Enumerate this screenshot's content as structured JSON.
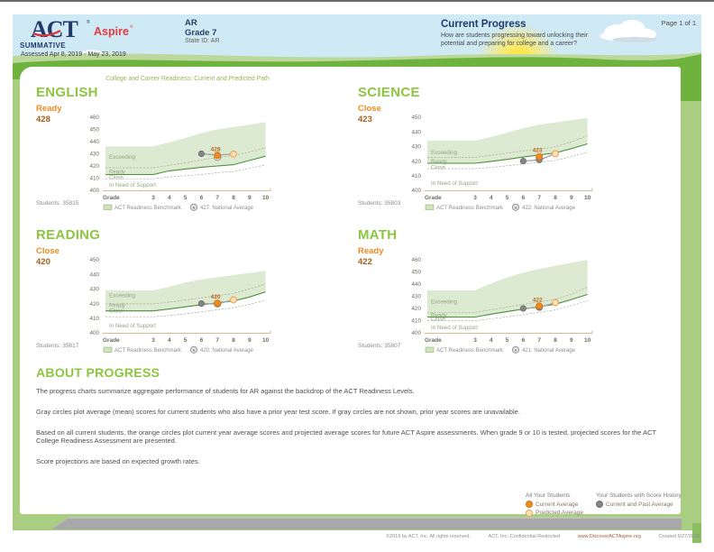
{
  "header": {
    "logo_act": "ACT",
    "logo_aspire": "Aspire",
    "logo_reg": "®",
    "program": "SUMMATIVE",
    "assessed": "Assessed Apr 8, 2019 - May 23, 2019",
    "org": "AR",
    "grade": "Grade 7",
    "state_id": "State ID: AR",
    "report_title": "Current Progress",
    "report_subtitle": "How are students progressing toward unlocking their potential and preparing for college and a career?",
    "page_number": "Page 1 of 1"
  },
  "section_title": "College and Career Readiness: Current and Predicted Path",
  "subjects": [
    {
      "name": "ENGLISH",
      "level": "Ready",
      "score": "428",
      "students": "Students: 35815"
    },
    {
      "name": "SCIENCE",
      "level": "Close",
      "score": "423",
      "students": "Students: 35803"
    },
    {
      "name": "READING",
      "level": "Close",
      "score": "420",
      "students": "Students: 35817"
    },
    {
      "name": "MATH",
      "level": "Ready",
      "score": "422",
      "students": "Students: 35807"
    }
  ],
  "chart_data": [
    {
      "type": "area",
      "subject": "English",
      "xlabel": "Grade",
      "x_grades": [
        3,
        4,
        5,
        6,
        7,
        8,
        9,
        10
      ],
      "ylim": [
        400,
        460
      ],
      "yticks": [
        400,
        410,
        420,
        430,
        440,
        450,
        460
      ],
      "band_top": [
        436,
        436,
        439.5,
        443,
        447,
        450,
        452,
        454,
        456
      ],
      "benchmark": [
        413,
        413,
        416,
        417.5,
        419,
        420,
        421,
        424.5,
        428
      ],
      "ready_boundary": [
        418.5,
        418.5,
        420.5,
        422.5,
        425,
        427,
        428.5,
        431.5,
        435
      ],
      "close_boundary": [
        409.5,
        409.5,
        411,
        412,
        413,
        414.5,
        415.5,
        418,
        421
      ],
      "zones": [
        {
          "label": "Exceeding",
          "y": 427.5
        },
        {
          "label": "Ready",
          "y": 415.3
        },
        {
          "label": "Close",
          "y": 410.8
        },
        {
          "label": "In Need of Support",
          "y": 404.3
        }
      ],
      "gray_points": [
        [
          6,
          430
        ],
        [
          7,
          429
        ]
      ],
      "current_point": [
        7,
        428.5
      ],
      "predicted_point": [
        8,
        429.8
      ],
      "national_marker": [
        7,
        427.3
      ],
      "point_label": "428",
      "national_average": 427,
      "legend_benchmark": "ACT Readiness Benchmark",
      "legend_national": "427: National Average"
    },
    {
      "type": "area",
      "subject": "Science",
      "xlabel": "Grade",
      "x_grades": [
        3,
        4,
        5,
        6,
        7,
        8,
        9,
        10
      ],
      "ylim": [
        400,
        450
      ],
      "yticks": [
        400,
        410,
        420,
        430,
        440,
        450
      ],
      "band_top": [
        434,
        434,
        436.5,
        439.5,
        442.5,
        445,
        446.5,
        448,
        449.5
      ],
      "benchmark": [
        418.5,
        418.5,
        419.8,
        421.2,
        422.8,
        424.2,
        425.6,
        428.5,
        431.8
      ],
      "ready_boundary": [
        422.5,
        422.5,
        424,
        425.5,
        427,
        428.2,
        429.8,
        433,
        437.5
      ],
      "close_boundary": [
        414.8,
        414.8,
        415.6,
        416.8,
        418,
        419.2,
        420.5,
        423,
        426
      ],
      "zones": [
        {
          "label": "Exceeding",
          "y": 426
        },
        {
          "label": "Ready",
          "y": 419.8
        },
        {
          "label": "Close",
          "y": 415.6
        },
        {
          "label": "In Need of Support",
          "y": 405
        }
      ],
      "gray_points": [
        [
          6,
          420
        ],
        [
          7,
          420.8
        ]
      ],
      "current_point": [
        7,
        423
      ],
      "predicted_point": [
        8,
        425
      ],
      "national_marker": [
        7,
        422
      ],
      "point_label": "423",
      "national_average": 422,
      "legend_benchmark": "ACT Readiness Benchmark",
      "legend_national": "422: National Average"
    },
    {
      "type": "area",
      "subject": "Reading",
      "xlabel": "Grade",
      "x_grades": [
        3,
        4,
        5,
        6,
        7,
        8,
        9,
        10
      ],
      "ylim": [
        400,
        450
      ],
      "yticks": [
        400,
        410,
        420,
        430,
        440,
        450
      ],
      "band_top": [
        429,
        429,
        431.5,
        434.5,
        436.5,
        438,
        439.5,
        441,
        442.5
      ],
      "benchmark": [
        415,
        415,
        416.3,
        417.8,
        419.2,
        420.5,
        421.8,
        424.5,
        428
      ],
      "ready_boundary": [
        419.8,
        419.8,
        421,
        422.5,
        424,
        425.5,
        427,
        429.8,
        433.5
      ],
      "close_boundary": [
        411,
        411,
        411.8,
        413,
        414.3,
        415.8,
        417.2,
        419.5,
        422.3
      ],
      "zones": [
        {
          "label": "Exceeding",
          "y": 425.5
        },
        {
          "label": "Ready",
          "y": 418.8
        },
        {
          "label": "Close",
          "y": 415.2
        },
        {
          "label": "In Need of Support",
          "y": 405
        }
      ],
      "gray_points": [
        [
          6,
          420
        ],
        [
          7,
          419.8
        ]
      ],
      "current_point": [
        7,
        420.3
      ],
      "predicted_point": [
        8,
        422.5
      ],
      "national_marker": [
        7,
        420
      ],
      "point_label": "420",
      "national_average": 420,
      "legend_benchmark": "ACT Readiness Benchmark",
      "legend_national": "420: National Average"
    },
    {
      "type": "area",
      "subject": "Math",
      "xlabel": "Grade",
      "x_grades": [
        3,
        4,
        5,
        6,
        7,
        8,
        9,
        10
      ],
      "ylim": [
        400,
        460
      ],
      "yticks": [
        400,
        410,
        420,
        430,
        440,
        450,
        460
      ],
      "band_top": [
        435,
        435,
        440.5,
        445.5,
        449.5,
        452.5,
        455,
        457.5,
        460
      ],
      "benchmark": [
        413,
        413,
        415.3,
        417.5,
        419.5,
        421.5,
        423.5,
        427.3,
        431.5
      ],
      "ready_boundary": [
        416.8,
        416.8,
        419,
        421.2,
        423.3,
        425.4,
        427.5,
        431.8,
        437.5
      ],
      "close_boundary": [
        410,
        410,
        411.5,
        413.2,
        415,
        416.8,
        418.8,
        422.3,
        426.3
      ],
      "zones": [
        {
          "label": "Exceeding",
          "y": 425.5
        },
        {
          "label": "Ready",
          "y": 414.3
        },
        {
          "label": "Close",
          "y": 411.5
        },
        {
          "label": "In Need of Support",
          "y": 404.3
        }
      ],
      "gray_points": [
        [
          6,
          420
        ],
        [
          7,
          420.8
        ]
      ],
      "current_point": [
        7,
        422
      ],
      "predicted_point": [
        8,
        424.8
      ],
      "national_marker": [
        7,
        421.3
      ],
      "point_label": "422",
      "national_average": 421,
      "legend_benchmark": "ACT Readiness Benchmark",
      "legend_national": "421: National Average"
    }
  ],
  "about": {
    "title": "ABOUT PROGRESS",
    "paragraphs": [
      "The progress charts summarize aggregate performance of students for AR against the backdrop of the ACT Readiness Levels.",
      "Gray circles plot average (mean) scores for current students who also have a prior year test score. If gray circles are not shown, prior year scores are unavailable.",
      "Based on all current students, the orange circles plot current year average scores and projected average scores for future ACT Aspire assessments. When grade 9 or 10 is tested, projected scores for the ACT College Readiness Assessment are presented.",
      "Score projections are based on expected growth rates."
    ]
  },
  "bottom_legend": {
    "col1_title": "All Your Students",
    "col1_items": [
      "Current Average",
      "Predicted Average"
    ],
    "col2_title": "Your Students with Score History",
    "col2_items": [
      "Current and Past Average"
    ]
  },
  "footer": {
    "copyright": "©2019 by ACT, Inc. All rights reserved.",
    "confidential": "ACT, Inc.-Confidential Restricted",
    "url": "www.DiscoverACTAspire.org",
    "created": "Created 6/27/2019"
  },
  "colors": {
    "sky": "#cfe9f5",
    "hill_bright": "#6db33e",
    "grass_light": "#a9ce82",
    "navy": "#1f3a6d",
    "brand_red": "#e23b3f",
    "heading_green": "#8cc63e",
    "level_orange": "#f18a21",
    "score_brown": "#a4611c",
    "band_fill": "#dcead2",
    "benchmark_line": "#4e8f3c",
    "boundary_dash": "#a8ae90",
    "current_dot": "#ee8a1f",
    "predicted_dot": "#fbe3c0",
    "gray_dot": "#858585"
  }
}
